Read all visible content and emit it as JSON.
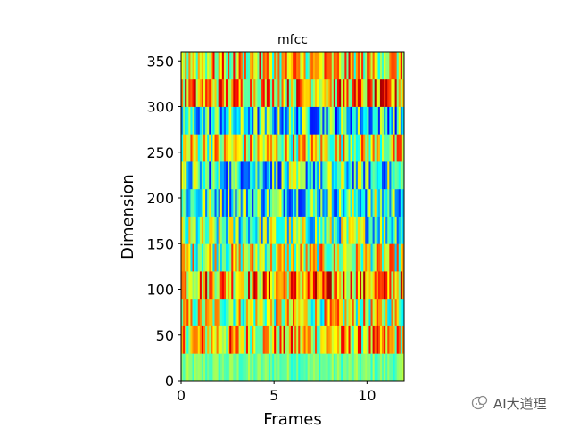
{
  "chart_data": {
    "type": "heatmap",
    "title": "mfcc",
    "xlabel": "Frames",
    "ylabel": "Dimension",
    "xlim": [
      0,
      12
    ],
    "ylim": [
      0,
      360
    ],
    "x_ticks": [
      0,
      5,
      10
    ],
    "x_tick_labels": [
      "0",
      "5",
      "10"
    ],
    "y_ticks": [
      0,
      50,
      100,
      150,
      200,
      250,
      300,
      350
    ],
    "y_tick_labels": [
      "0",
      "50",
      "100",
      "150",
      "200",
      "250",
      "300",
      "350"
    ],
    "colormap": "jet",
    "band_height": 30,
    "num_bands": 12,
    "num_frames": 120,
    "band_mean_levels": [
      0.48,
      0.66,
      0.58,
      0.72,
      0.58,
      0.46,
      0.42,
      0.4,
      0.6,
      0.38,
      0.7,
      0.64
    ],
    "grid": false,
    "colors": {
      "axis": "#000000",
      "background": "#ffffff"
    }
  },
  "watermark": {
    "text": "AI大道理"
  }
}
